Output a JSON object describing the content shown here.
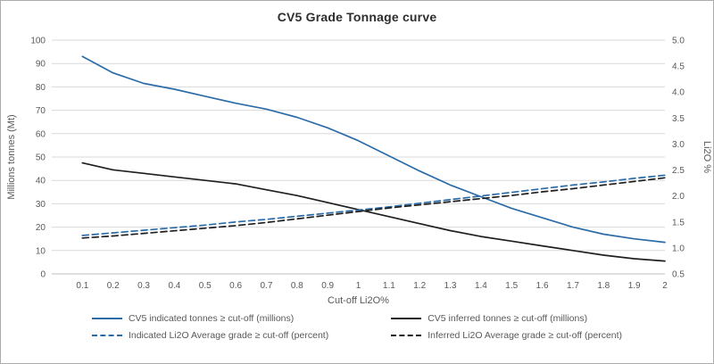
{
  "chart_data": {
    "type": "line",
    "title": "CV5 Grade Tonnage curve",
    "xlabel": "Cut-off Li2O%",
    "ylabel_left": "Millions tonnes (Mt)",
    "ylabel_right": "Li2O %",
    "xlim": [
      0,
      2
    ],
    "ylim_left": [
      0,
      100
    ],
    "ylim_right": [
      0.5,
      5.0
    ],
    "grid": "horizontal",
    "legend_position": "bottom",
    "x": [
      0.1,
      0.2,
      0.3,
      0.4,
      0.5,
      0.6,
      0.7,
      0.8,
      0.9,
      1.0,
      1.1,
      1.2,
      1.3,
      1.4,
      1.5,
      1.6,
      1.7,
      1.8,
      1.9,
      2.0
    ],
    "xtick_labels": [
      "0.1",
      "0.2",
      "0.3",
      "0.4",
      "0.5",
      "0.6",
      "0.7",
      "0.8",
      "0.9",
      "1",
      "1.1",
      "1.2",
      "1.3",
      "1.4",
      "1.5",
      "1.6",
      "1.7",
      "1.8",
      "1.9",
      "2"
    ],
    "yticks_left": [
      0,
      10,
      20,
      30,
      40,
      50,
      60,
      70,
      80,
      90,
      100
    ],
    "yticks_right": [
      0.5,
      1.0,
      1.5,
      2.0,
      2.5,
      3.0,
      3.5,
      4.0,
      4.5,
      5.0
    ],
    "palette": {
      "blue": "#2B6CA8",
      "black": "#1F1F1F",
      "grid": "#D9D9D9",
      "axis": "#BFBFBF",
      "text": "#595959"
    },
    "series": [
      {
        "name": "CV5 indicated tonnes ≥ cut-off (millions)",
        "axis": "left",
        "style": "solid",
        "color": "#2B6CA8",
        "values": [
          93,
          86,
          81.5,
          79,
          76,
          73,
          70.5,
          67,
          62.5,
          57,
          50.5,
          44,
          38,
          33,
          28,
          24,
          20,
          17,
          15,
          13.5
        ]
      },
      {
        "name": "CV5 inferred tonnes ≥ cut-off (millions)",
        "axis": "left",
        "style": "solid",
        "color": "#1F1F1F",
        "values": [
          47.5,
          44.5,
          43,
          41.5,
          40,
          38.5,
          36,
          33.5,
          30.5,
          27.5,
          24.5,
          21.5,
          18.5,
          16,
          14,
          12,
          10,
          8,
          6.5,
          5.5
        ]
      },
      {
        "name": "Indicated Li2O Average grade ≥ cut-off (percent)",
        "axis": "right",
        "style": "dashed",
        "color": "#2B6CA8",
        "values": [
          1.24,
          1.29,
          1.34,
          1.39,
          1.44,
          1.5,
          1.55,
          1.61,
          1.67,
          1.73,
          1.79,
          1.86,
          1.93,
          2.0,
          2.07,
          2.14,
          2.21,
          2.27,
          2.34,
          2.4
        ]
      },
      {
        "name": "Inferred Li2O Average grade ≥ cut-off (percent)",
        "axis": "right",
        "style": "dashed",
        "color": "#1F1F1F",
        "values": [
          1.19,
          1.23,
          1.28,
          1.33,
          1.38,
          1.43,
          1.49,
          1.56,
          1.63,
          1.7,
          1.77,
          1.83,
          1.89,
          1.95,
          2.01,
          2.08,
          2.14,
          2.21,
          2.28,
          2.35
        ]
      }
    ]
  }
}
